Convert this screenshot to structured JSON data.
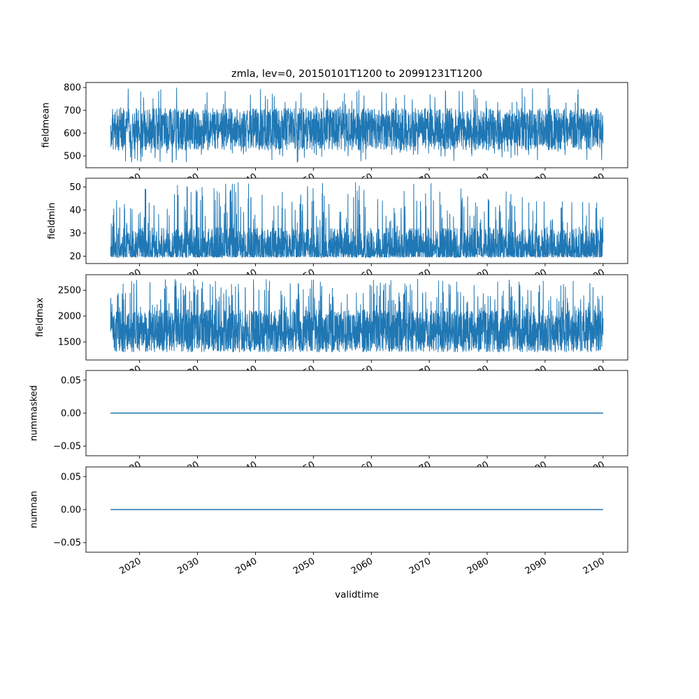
{
  "figure": {
    "title": "zmla, lev=0, 20150101T1200 to 20991231T1200",
    "xlabel": "validtime",
    "line_color": "#1f77b4",
    "background_color": "#ffffff",
    "x_axis": {
      "min": 2010.75,
      "max": 2104.25,
      "data_start": 2015.0,
      "data_end": 2100.0,
      "ticks": [
        2020,
        2030,
        2040,
        2050,
        2060,
        2070,
        2080,
        2090,
        2100
      ],
      "tick_labels": [
        "2020",
        "2030",
        "2040",
        "2050",
        "2060",
        "2070",
        "2080",
        "2090",
        "2100"
      ]
    }
  },
  "chart_data": [
    {
      "type": "line",
      "name": "fieldmean",
      "ylabel": "fieldmean",
      "ylim": [
        448,
        822
      ],
      "yticks": {
        "values": [
          500,
          600,
          700,
          800
        ],
        "labels": [
          "500",
          "600",
          "700",
          "800"
        ]
      },
      "summary": {
        "approx_mean": 617,
        "typical_band": [
          525,
          710
        ],
        "min": 470,
        "max": 805
      },
      "synth": {
        "kind": "uniform",
        "center": 617,
        "half": 93,
        "points": 2800,
        "seed": 11,
        "spikes": [
          {
            "prob": 0.03,
            "lo": 700,
            "hi": 800
          },
          {
            "prob": 0.03,
            "lo": 470,
            "hi": 535
          }
        ],
        "clip": [
          465,
          805
        ]
      }
    },
    {
      "type": "line",
      "name": "fieldmin",
      "ylabel": "fieldmin",
      "ylim": [
        16.8,
        53.8
      ],
      "yticks": {
        "values": [
          20,
          30,
          40,
          50
        ],
        "labels": [
          "20",
          "30",
          "40",
          "50"
        ]
      },
      "summary": {
        "typical_band": [
          19,
          30
        ],
        "min": 18.5,
        "max": 52
      },
      "synth": {
        "kind": "skew_low",
        "low": 19.5,
        "range": 13,
        "pow": 2.2,
        "points": 2800,
        "seed": 22,
        "spikes": [
          {
            "prob": 0.07,
            "lo": 32,
            "hi": 52,
            "decay_after": 2072,
            "decay_rate": 0.45
          }
        ],
        "clip": [
          18.5,
          52.5
        ]
      }
    },
    {
      "type": "line",
      "name": "fieldmax",
      "ylabel": "fieldmax",
      "ylim": [
        1150,
        2800
      ],
      "yticks": {
        "values": [
          1500,
          2000,
          2500
        ],
        "labels": [
          "1500",
          "2000",
          "2500"
        ]
      },
      "summary": {
        "typical_band": [
          1300,
          2100
        ],
        "min": 1210,
        "max": 2720
      },
      "synth": {
        "kind": "skew_low",
        "low": 1300,
        "range": 820,
        "pow": 1.2,
        "points": 2800,
        "seed": 33,
        "spikes": [
          {
            "prob": 0.09,
            "lo": 2050,
            "hi": 2720
          }
        ],
        "clip": [
          1210,
          2730
        ]
      }
    },
    {
      "type": "line",
      "name": "nummasked",
      "ylabel": "nummasked",
      "ylim": [
        -0.0646,
        0.0646
      ],
      "yticks": {
        "values": [
          -0.05,
          0,
          0.05
        ],
        "labels": [
          "−0.05",
          "0.00",
          "0.05"
        ]
      },
      "summary": {
        "constant_value": 0
      },
      "synth": {
        "kind": "flat",
        "value": 0,
        "points": 2,
        "seed": 1
      }
    },
    {
      "type": "line",
      "name": "numnan",
      "ylabel": "numnan",
      "ylim": [
        -0.0646,
        0.0646
      ],
      "yticks": {
        "values": [
          -0.05,
          0,
          0.05
        ],
        "labels": [
          "−0.05",
          "0.00",
          "0.05"
        ]
      },
      "summary": {
        "constant_value": 0
      },
      "synth": {
        "kind": "flat",
        "value": 0,
        "points": 2,
        "seed": 1
      }
    }
  ]
}
